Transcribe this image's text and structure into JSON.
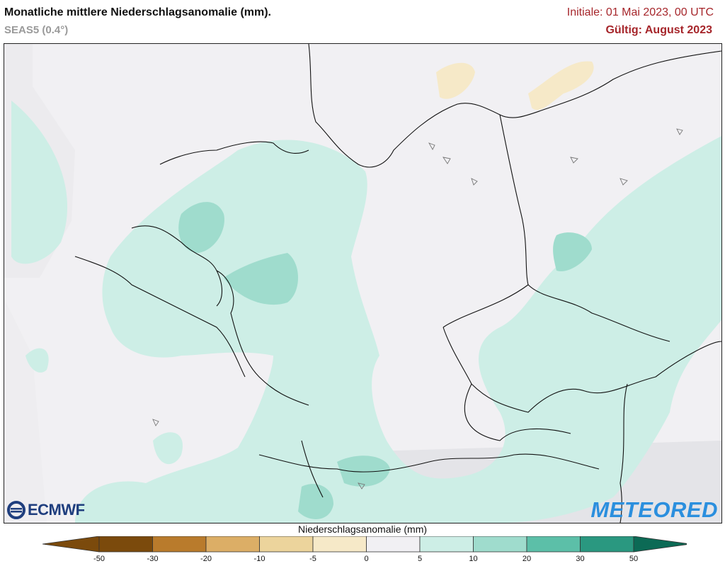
{
  "header": {
    "title": "Monatliche mittlere Niederschlagsanomalie (mm).",
    "subtitle": "SEAS5 (0.4°)",
    "initiale": "Initiale: 01 Mai 2023, 00 UTC",
    "valid": "Gültig: August 2023"
  },
  "logos": {
    "ecmwf": "ECMWF",
    "meteored": "METEORED"
  },
  "legend": {
    "title": "Niederschlagsanomalie (mm)",
    "ticks": [
      "-50",
      "-30",
      "-20",
      "-10",
      "-5",
      "0",
      "5",
      "10",
      "20",
      "30",
      "50"
    ],
    "colors": [
      "#7b4a0c",
      "#b97b2c",
      "#dcae66",
      "#ecd49c",
      "#f6e9c8",
      "#f1f0f3",
      "#cdeee6",
      "#9fdccd",
      "#5cbfa8",
      "#2a9880",
      "#0c6a55"
    ]
  },
  "map": {
    "region": "Mitteleuropa"
  }
}
